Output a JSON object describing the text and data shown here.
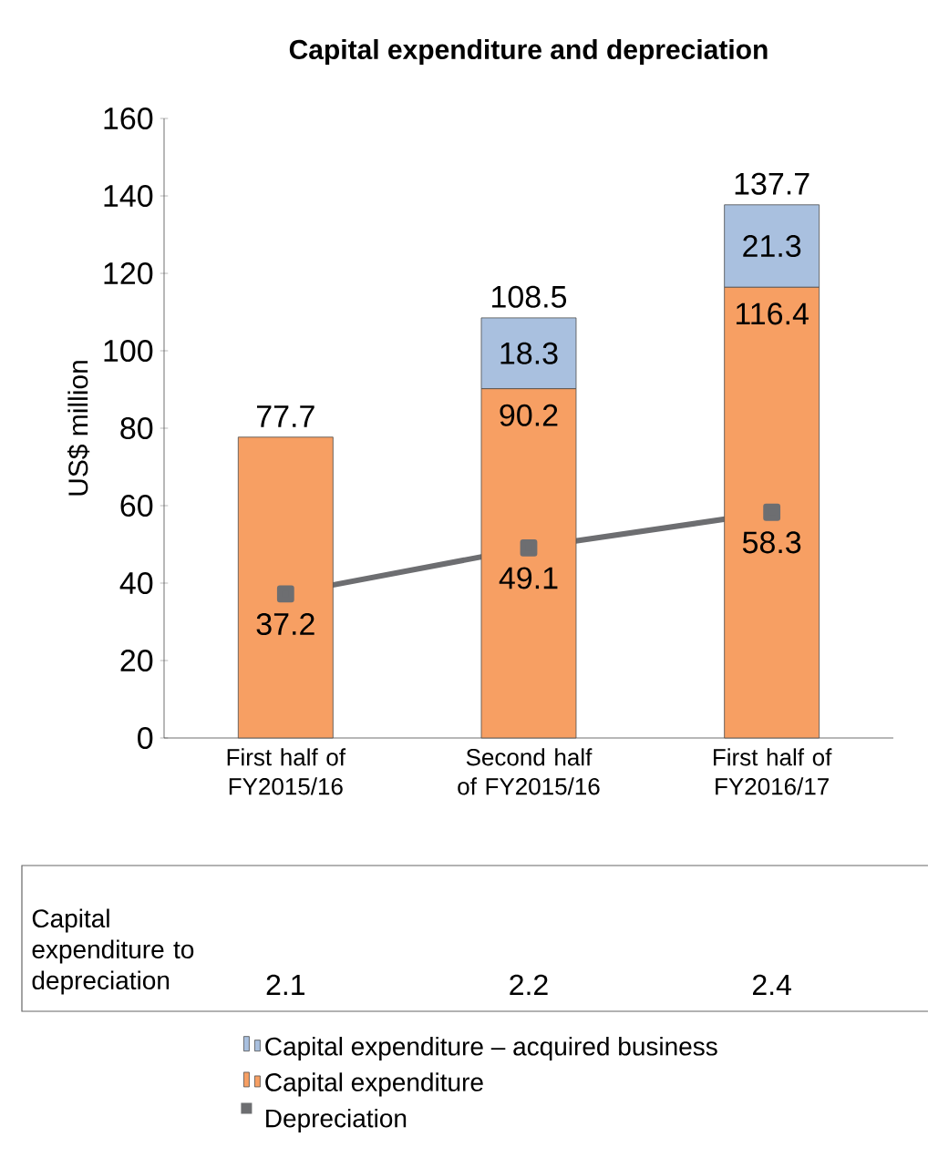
{
  "chart_data": {
    "type": "bar",
    "stacked": true,
    "title": "Capital expenditure and depreciation",
    "ylabel": "US$ million",
    "categories": [
      "First half of FY2015/16",
      "Second half of FY2015/16",
      "First half of FY2016/17"
    ],
    "series": [
      {
        "name": "Capital expenditure",
        "color": "#f79f63",
        "values": [
          77.7,
          90.2,
          116.4
        ],
        "value_labels": [
          null,
          "90.2",
          "116.4"
        ]
      },
      {
        "name": "Capital expenditure – acquired business",
        "color": "#a9c0df",
        "values": [
          null,
          18.3,
          21.3
        ],
        "value_labels": [
          null,
          "18.3",
          "21.3"
        ]
      },
      {
        "name": "Depreciation",
        "type": "line",
        "marker": "square",
        "color": "#6d6e71",
        "values": [
          37.2,
          49.1,
          58.3
        ],
        "value_labels": [
          "37.2",
          "49.1",
          "58.3"
        ]
      }
    ],
    "totals": [
      "77.7",
      "108.5",
      "137.7"
    ],
    "ylim": [
      0,
      160
    ],
    "yticks": [
      0,
      20,
      40,
      60,
      80,
      100,
      120,
      140,
      160
    ],
    "legend": "bottom",
    "annotations": [
      "Capital expenditure to depreciation",
      "2.1",
      "2.2",
      "2.4"
    ]
  }
}
